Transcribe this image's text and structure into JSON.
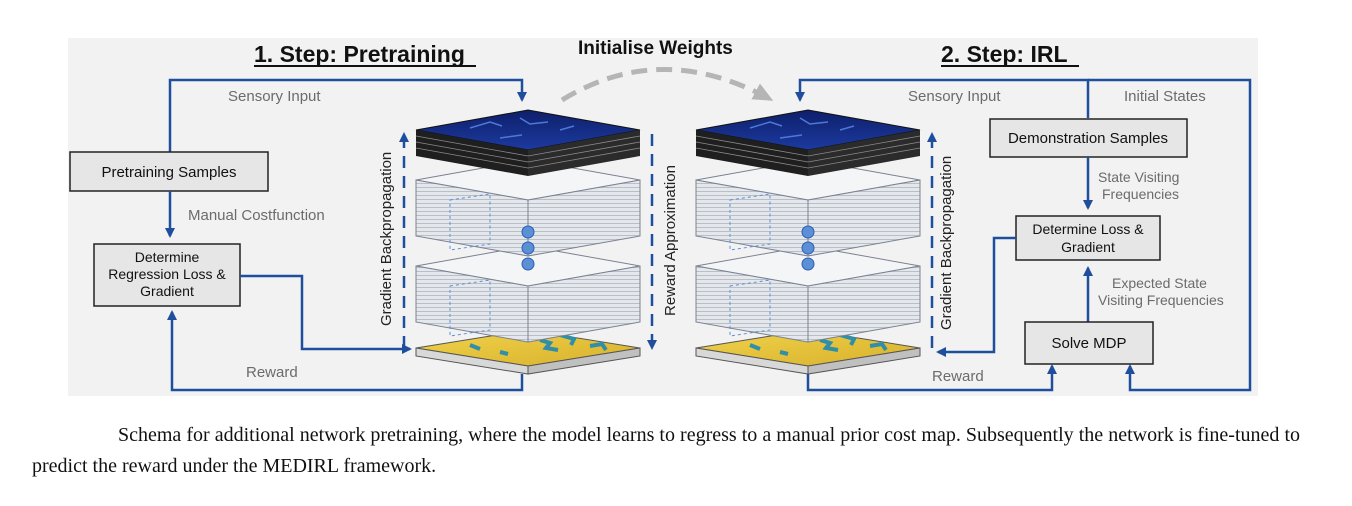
{
  "step1_title": "1. Step: Pretraining",
  "step2_title": "2. Step: IRL",
  "init_weights": "Initialise Weights",
  "left": {
    "sensory_input": "Sensory Input",
    "pretraining_samples": "Pretraining Samples",
    "manual_costfunction": "Manual Costfunction",
    "determine_box": [
      "Determine",
      "Regression Loss &",
      "Gradient"
    ],
    "reward": "Reward",
    "gradient_backprop": "Gradient Backpropagation"
  },
  "center": {
    "reward_approx": "Reward Approximation"
  },
  "right": {
    "sensory_input": "Sensory Input",
    "initial_states": "Initial States",
    "demonstration_samples": "Demonstration Samples",
    "svf": [
      "State Visiting",
      "Frequencies"
    ],
    "determine_box": [
      "Determine Loss &",
      "Gradient"
    ],
    "esvf": [
      "Expected State",
      "Visiting Frequencies"
    ],
    "solve_mdp": "Solve MDP",
    "reward": "Reward",
    "gradient_backprop": "Gradient Backpropagation"
  },
  "caption": "Schema for additional network pretraining, where the model learns to regress to a manual prior cost map. Subsequently the network is fine-tuned to predict the reward under the MEDIRL framework.",
  "colors": {
    "arrow_blue": "#1f4e9c",
    "panel_bg": "#f2f2f2",
    "box_fill": "#e6e6e6",
    "dashed_gray": "#b5b5b5",
    "label_gray": "#6b6b6b",
    "map_top": "#132c86",
    "map_bottom": "#e8c53a",
    "node_blue": "#5b8fd6"
  }
}
